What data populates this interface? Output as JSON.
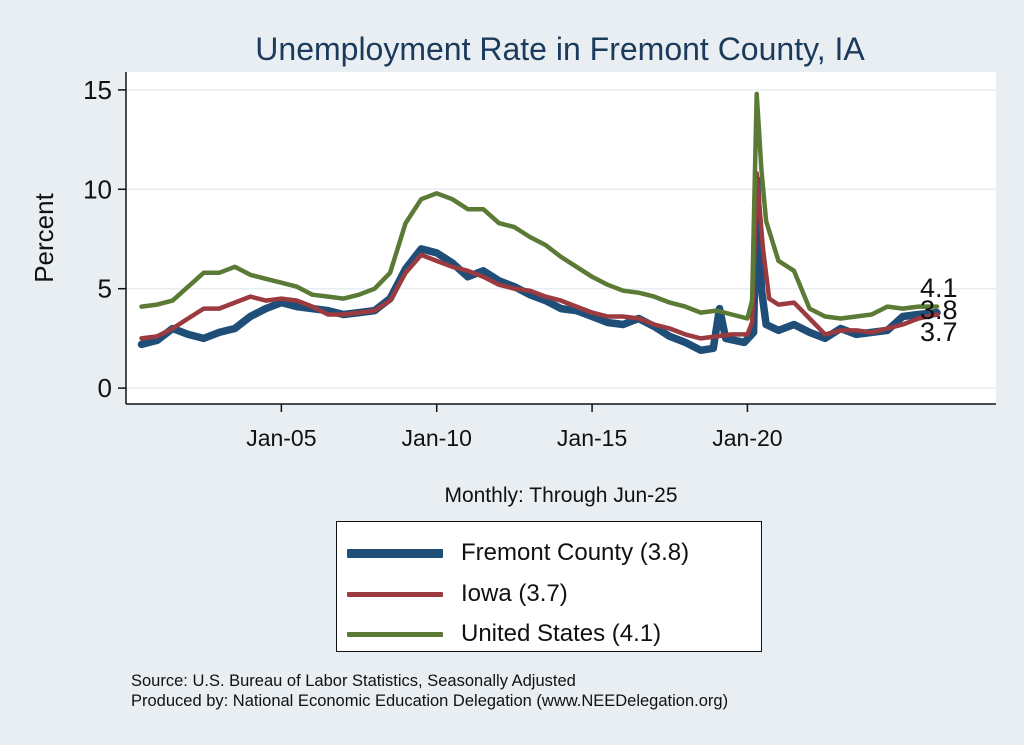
{
  "chart_data": {
    "type": "line",
    "title": "Unemployment Rate in Fremont  County, IA",
    "xlabel": "Monthly: Through Jun-25",
    "ylabel": "Percent",
    "xlim": [
      2000.0,
      2028.0
    ],
    "ylim": [
      -0.8,
      15.9
    ],
    "x_ticks": [
      {
        "value": 2005.0,
        "label": "Jan-05"
      },
      {
        "value": 2010.0,
        "label": "Jan-10"
      },
      {
        "value": 2015.0,
        "label": "Jan-15"
      },
      {
        "value": 2020.0,
        "label": "Jan-20"
      }
    ],
    "y_ticks": [
      0,
      5,
      10,
      15
    ],
    "grid": "horizontal",
    "legend": "bottom-center",
    "series": [
      {
        "name": "Fremont  County (3.8)",
        "color": "#1f4e79",
        "end_label": "3.8",
        "points": [
          [
            2000.5,
            2.2
          ],
          [
            2001.0,
            2.4
          ],
          [
            2001.5,
            3.0
          ],
          [
            2002.0,
            2.7
          ],
          [
            2002.5,
            2.5
          ],
          [
            2003.0,
            2.8
          ],
          [
            2003.5,
            3.0
          ],
          [
            2004.0,
            3.6
          ],
          [
            2004.5,
            4.0
          ],
          [
            2005.0,
            4.3
          ],
          [
            2005.5,
            4.1
          ],
          [
            2006.0,
            4.0
          ],
          [
            2006.5,
            3.9
          ],
          [
            2007.0,
            3.7
          ],
          [
            2007.5,
            3.8
          ],
          [
            2008.0,
            3.9
          ],
          [
            2008.5,
            4.5
          ],
          [
            2009.0,
            6.0
          ],
          [
            2009.5,
            7.0
          ],
          [
            2010.0,
            6.8
          ],
          [
            2010.5,
            6.3
          ],
          [
            2011.0,
            5.6
          ],
          [
            2011.5,
            5.9
          ],
          [
            2012.0,
            5.4
          ],
          [
            2012.5,
            5.1
          ],
          [
            2013.0,
            4.7
          ],
          [
            2013.5,
            4.4
          ],
          [
            2014.0,
            4.0
          ],
          [
            2014.5,
            3.9
          ],
          [
            2015.0,
            3.6
          ],
          [
            2015.5,
            3.3
          ],
          [
            2016.0,
            3.2
          ],
          [
            2016.5,
            3.5
          ],
          [
            2017.0,
            3.1
          ],
          [
            2017.5,
            2.6
          ],
          [
            2018.0,
            2.3
          ],
          [
            2018.5,
            1.9
          ],
          [
            2018.9,
            2.0
          ],
          [
            2019.1,
            4.0
          ],
          [
            2019.3,
            2.5
          ],
          [
            2019.6,
            2.4
          ],
          [
            2019.9,
            2.3
          ],
          [
            2020.2,
            2.8
          ],
          [
            2020.3,
            10.5
          ],
          [
            2020.45,
            5.0
          ],
          [
            2020.6,
            3.2
          ],
          [
            2021.0,
            2.9
          ],
          [
            2021.5,
            3.2
          ],
          [
            2022.0,
            2.8
          ],
          [
            2022.5,
            2.5
          ],
          [
            2023.0,
            3.0
          ],
          [
            2023.5,
            2.7
          ],
          [
            2024.0,
            2.8
          ],
          [
            2024.5,
            2.9
          ],
          [
            2025.0,
            3.6
          ],
          [
            2025.5,
            3.7
          ],
          [
            2026.1,
            3.8
          ]
        ]
      },
      {
        "name": "Iowa (3.7)",
        "color": "#9b3a3f",
        "end_label": "3.7",
        "points": [
          [
            2000.5,
            2.5
          ],
          [
            2001.0,
            2.6
          ],
          [
            2001.5,
            3.0
          ],
          [
            2002.0,
            3.5
          ],
          [
            2002.5,
            4.0
          ],
          [
            2003.0,
            4.0
          ],
          [
            2003.5,
            4.3
          ],
          [
            2004.0,
            4.6
          ],
          [
            2004.5,
            4.4
          ],
          [
            2005.0,
            4.5
          ],
          [
            2005.5,
            4.4
          ],
          [
            2006.0,
            4.1
          ],
          [
            2006.5,
            3.7
          ],
          [
            2007.0,
            3.7
          ],
          [
            2007.5,
            3.8
          ],
          [
            2008.0,
            3.9
          ],
          [
            2008.5,
            4.4
          ],
          [
            2009.0,
            5.8
          ],
          [
            2009.5,
            6.7
          ],
          [
            2010.0,
            6.4
          ],
          [
            2010.5,
            6.1
          ],
          [
            2011.0,
            5.9
          ],
          [
            2011.5,
            5.6
          ],
          [
            2012.0,
            5.2
          ],
          [
            2012.5,
            5.0
          ],
          [
            2013.0,
            4.9
          ],
          [
            2013.5,
            4.6
          ],
          [
            2014.0,
            4.4
          ],
          [
            2014.5,
            4.1
          ],
          [
            2015.0,
            3.8
          ],
          [
            2015.5,
            3.6
          ],
          [
            2016.0,
            3.6
          ],
          [
            2016.5,
            3.5
          ],
          [
            2017.0,
            3.2
          ],
          [
            2017.5,
            3.0
          ],
          [
            2018.0,
            2.7
          ],
          [
            2018.5,
            2.5
          ],
          [
            2019.0,
            2.6
          ],
          [
            2019.5,
            2.7
          ],
          [
            2020.0,
            2.7
          ],
          [
            2020.15,
            3.3
          ],
          [
            2020.3,
            10.8
          ],
          [
            2020.5,
            7.0
          ],
          [
            2020.7,
            4.5
          ],
          [
            2021.0,
            4.2
          ],
          [
            2021.5,
            4.3
          ],
          [
            2022.0,
            3.5
          ],
          [
            2022.5,
            2.7
          ],
          [
            2023.0,
            2.9
          ],
          [
            2023.5,
            2.9
          ],
          [
            2024.0,
            2.8
          ],
          [
            2024.5,
            3.0
          ],
          [
            2025.0,
            3.2
          ],
          [
            2025.5,
            3.5
          ],
          [
            2026.1,
            3.7
          ]
        ]
      },
      {
        "name": "United States (4.1)",
        "color": "#5b7a35",
        "end_label": "4.1",
        "points": [
          [
            2000.5,
            4.1
          ],
          [
            2001.0,
            4.2
          ],
          [
            2001.5,
            4.4
          ],
          [
            2002.0,
            5.1
          ],
          [
            2002.5,
            5.8
          ],
          [
            2003.0,
            5.8
          ],
          [
            2003.5,
            6.1
          ],
          [
            2004.0,
            5.7
          ],
          [
            2004.5,
            5.5
          ],
          [
            2005.0,
            5.3
          ],
          [
            2005.5,
            5.1
          ],
          [
            2006.0,
            4.7
          ],
          [
            2006.5,
            4.6
          ],
          [
            2007.0,
            4.5
          ],
          [
            2007.5,
            4.7
          ],
          [
            2008.0,
            5.0
          ],
          [
            2008.5,
            5.8
          ],
          [
            2009.0,
            8.3
          ],
          [
            2009.5,
            9.5
          ],
          [
            2010.0,
            9.8
          ],
          [
            2010.5,
            9.5
          ],
          [
            2011.0,
            9.0
          ],
          [
            2011.5,
            9.0
          ],
          [
            2012.0,
            8.3
          ],
          [
            2012.5,
            8.1
          ],
          [
            2013.0,
            7.6
          ],
          [
            2013.5,
            7.2
          ],
          [
            2014.0,
            6.6
          ],
          [
            2014.5,
            6.1
          ],
          [
            2015.0,
            5.6
          ],
          [
            2015.5,
            5.2
          ],
          [
            2016.0,
            4.9
          ],
          [
            2016.5,
            4.8
          ],
          [
            2017.0,
            4.6
          ],
          [
            2017.5,
            4.3
          ],
          [
            2018.0,
            4.1
          ],
          [
            2018.5,
            3.8
          ],
          [
            2019.0,
            3.9
          ],
          [
            2019.5,
            3.7
          ],
          [
            2020.0,
            3.5
          ],
          [
            2020.15,
            4.4
          ],
          [
            2020.3,
            14.8
          ],
          [
            2020.45,
            11.0
          ],
          [
            2020.6,
            8.4
          ],
          [
            2021.0,
            6.4
          ],
          [
            2021.5,
            5.9
          ],
          [
            2022.0,
            4.0
          ],
          [
            2022.5,
            3.6
          ],
          [
            2023.0,
            3.5
          ],
          [
            2023.5,
            3.6
          ],
          [
            2024.0,
            3.7
          ],
          [
            2024.5,
            4.1
          ],
          [
            2025.0,
            4.0
          ],
          [
            2025.5,
            4.1
          ],
          [
            2026.1,
            4.1
          ]
        ]
      }
    ],
    "source_lines": [
      "Source: U.S. Bureau of Labor Statistics, Seasonally Adjusted",
      "Produced by: National Economic Education Delegation (www.NEEDelegation.org)"
    ]
  }
}
